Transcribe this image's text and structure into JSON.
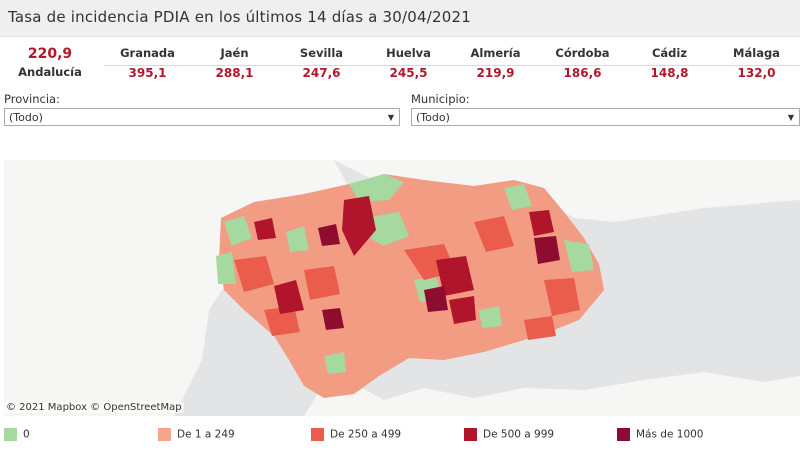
{
  "header": {
    "title": "Tasa de incidencia PDIA en los últimos 14 días a 30/04/2021"
  },
  "summary": {
    "value": "220,9",
    "label": "Andalucía"
  },
  "provinces": [
    {
      "name": "Granada",
      "value": "395,1"
    },
    {
      "name": "Jaén",
      "value": "288,1"
    },
    {
      "name": "Sevilla",
      "value": "247,6"
    },
    {
      "name": "Huelva",
      "value": "245,5"
    },
    {
      "name": "Almería",
      "value": "219,9"
    },
    {
      "name": "Córdoba",
      "value": "186,6"
    },
    {
      "name": "Cádiz",
      "value": "148,8"
    },
    {
      "name": "Málaga",
      "value": "132,0"
    }
  ],
  "filters": {
    "provincia": {
      "label": "Provincia:",
      "value": "(Todo)"
    },
    "municipio": {
      "label": "Municipio:",
      "value": "(Todo)"
    }
  },
  "map": {
    "attribution": "© 2021 Mapbox  © OpenStreetMap"
  },
  "legend": [
    {
      "label": "0",
      "color": "#a6d9a0"
    },
    {
      "label": "De 1 a 249",
      "color": "#f4a58a"
    },
    {
      "label": "De 250 a 499",
      "color": "#ea5d4c"
    },
    {
      "label": "De 500 a 999",
      "color": "#b0152b"
    },
    {
      "label": "Más de 1000",
      "color": "#8e0c2f"
    }
  ]
}
